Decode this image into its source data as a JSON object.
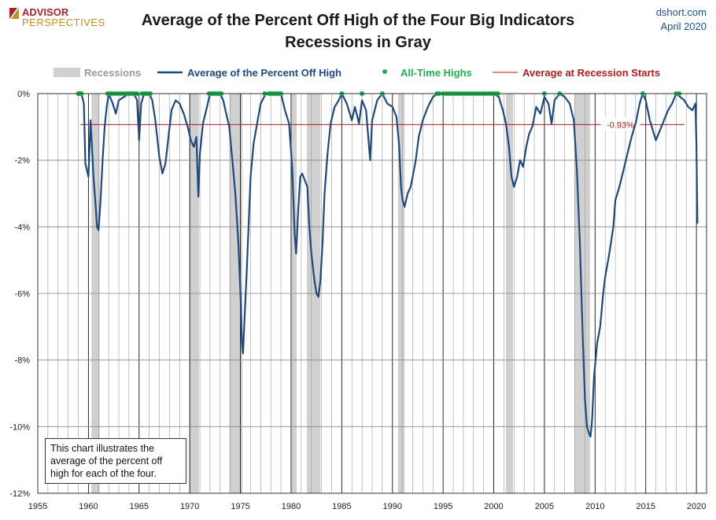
{
  "header": {
    "logo_line1": "ADVISOR",
    "logo_line2": "PERSPECTIVES",
    "title_line1": "Average of the Percent Off High of the Four Big Indicators",
    "title_line2": "Recessions in Gray",
    "source_site": "dshort.com",
    "source_date": "April 2020"
  },
  "legend": {
    "recessions": "Recessions",
    "average": "Average of the Percent Off High",
    "ath": "All-Time Highs",
    "avg_recession": "Average at Recession Starts"
  },
  "note": {
    "text": "This chart illustrates the average of the percent off high for each of the four."
  },
  "colors": {
    "line": "#1f497d",
    "ath": "#1fae4f",
    "recession_fill": "#d0d0d0",
    "avg_line": "#b01c1c",
    "grid": "#9a9a9a"
  },
  "chart_data": {
    "type": "line",
    "xlim": [
      1955,
      2021
    ],
    "ylim": [
      -12,
      0
    ],
    "x_ticks": [
      1955,
      1960,
      1965,
      1970,
      1975,
      1980,
      1985,
      1990,
      1995,
      2000,
      2005,
      2010,
      2015,
      2020
    ],
    "y_ticks": [
      0,
      -2,
      -4,
      -6,
      -8,
      -10,
      -12
    ],
    "y_tick_labels": [
      "0%",
      "-2%",
      "-4%",
      "-6%",
      "-8%",
      "-10%",
      "-12%"
    ],
    "recessions": [
      [
        1960.3,
        1961.1
      ],
      [
        1969.95,
        1970.9
      ],
      [
        1973.9,
        1975.2
      ],
      [
        1980.05,
        1980.55
      ],
      [
        1981.55,
        1982.9
      ],
      [
        1990.55,
        1991.2
      ],
      [
        2001.2,
        2001.9
      ],
      [
        2007.95,
        2009.5
      ]
    ],
    "average_at_recession_starts": -0.93,
    "average_label": "-0.93%",
    "series": [
      {
        "name": "Average of the Percent Off High",
        "points": [
          [
            1959.0,
            0.0
          ],
          [
            1959.3,
            0.0
          ],
          [
            1959.55,
            -0.3
          ],
          [
            1959.7,
            -2.1
          ],
          [
            1959.85,
            -2.3
          ],
          [
            1960.0,
            -2.5
          ],
          [
            1960.1,
            -1.7
          ],
          [
            1960.2,
            -0.8
          ],
          [
            1960.35,
            -1.6
          ],
          [
            1960.5,
            -2.5
          ],
          [
            1960.7,
            -3.3
          ],
          [
            1960.85,
            -4.0
          ],
          [
            1961.0,
            -4.1
          ],
          [
            1961.2,
            -3.2
          ],
          [
            1961.4,
            -2.0
          ],
          [
            1961.6,
            -1.0
          ],
          [
            1961.8,
            -0.4
          ],
          [
            1962.0,
            0.0
          ],
          [
            1962.4,
            -0.3
          ],
          [
            1962.7,
            -0.6
          ],
          [
            1963.0,
            -0.2
          ],
          [
            1963.5,
            -0.1
          ],
          [
            1964.0,
            0.0
          ],
          [
            1964.5,
            0.0
          ],
          [
            1964.8,
            -0.2
          ],
          [
            1965.0,
            -1.4
          ],
          [
            1965.2,
            -0.3
          ],
          [
            1965.5,
            0.0
          ],
          [
            1966.0,
            0.0
          ],
          [
            1966.3,
            -0.2
          ],
          [
            1966.6,
            -0.8
          ],
          [
            1967.0,
            -1.9
          ],
          [
            1967.3,
            -2.4
          ],
          [
            1967.6,
            -2.1
          ],
          [
            1967.9,
            -1.3
          ],
          [
            1968.2,
            -0.5
          ],
          [
            1968.6,
            -0.2
          ],
          [
            1969.0,
            -0.3
          ],
          [
            1969.4,
            -0.6
          ],
          [
            1969.8,
            -1.0
          ],
          [
            1970.1,
            -1.4
          ],
          [
            1970.4,
            -1.6
          ],
          [
            1970.65,
            -1.3
          ],
          [
            1970.85,
            -3.1
          ],
          [
            1971.0,
            -1.8
          ],
          [
            1971.3,
            -0.9
          ],
          [
            1971.7,
            -0.4
          ],
          [
            1972.0,
            0.0
          ],
          [
            1972.5,
            0.0
          ],
          [
            1973.0,
            0.0
          ],
          [
            1973.3,
            -0.2
          ],
          [
            1973.6,
            -0.6
          ],
          [
            1973.9,
            -1.0
          ],
          [
            1974.2,
            -2.0
          ],
          [
            1974.5,
            -3.0
          ],
          [
            1974.8,
            -4.5
          ],
          [
            1975.0,
            -6.0
          ],
          [
            1975.15,
            -7.5
          ],
          [
            1975.25,
            -7.8
          ],
          [
            1975.4,
            -6.8
          ],
          [
            1975.6,
            -5.5
          ],
          [
            1975.8,
            -4.0
          ],
          [
            1976.0,
            -2.5
          ],
          [
            1976.3,
            -1.5
          ],
          [
            1976.7,
            -0.8
          ],
          [
            1977.0,
            -0.3
          ],
          [
            1977.5,
            0.0
          ],
          [
            1978.0,
            0.0
          ],
          [
            1978.5,
            0.0
          ],
          [
            1979.0,
            0.0
          ],
          [
            1979.4,
            -0.5
          ],
          [
            1979.8,
            -0.9
          ],
          [
            1980.1,
            -2.2
          ],
          [
            1980.35,
            -4.2
          ],
          [
            1980.5,
            -4.8
          ],
          [
            1980.7,
            -3.5
          ],
          [
            1980.9,
            -2.5
          ],
          [
            1981.1,
            -2.4
          ],
          [
            1981.35,
            -2.6
          ],
          [
            1981.6,
            -2.8
          ],
          [
            1981.8,
            -4.0
          ],
          [
            1982.0,
            -4.8
          ],
          [
            1982.3,
            -5.6
          ],
          [
            1982.5,
            -6.0
          ],
          [
            1982.7,
            -6.1
          ],
          [
            1982.9,
            -5.6
          ],
          [
            1983.1,
            -4.5
          ],
          [
            1983.3,
            -3.0
          ],
          [
            1983.6,
            -1.8
          ],
          [
            1983.9,
            -0.9
          ],
          [
            1984.3,
            -0.4
          ],
          [
            1984.7,
            -0.2
          ],
          [
            1985.0,
            0.0
          ],
          [
            1985.5,
            -0.3
          ],
          [
            1986.0,
            -0.8
          ],
          [
            1986.3,
            -0.4
          ],
          [
            1986.7,
            -0.9
          ],
          [
            1987.0,
            -0.2
          ],
          [
            1987.4,
            -0.5
          ],
          [
            1987.8,
            -2.0
          ],
          [
            1988.0,
            -0.8
          ],
          [
            1988.5,
            -0.2
          ],
          [
            1989.0,
            0.0
          ],
          [
            1989.5,
            -0.3
          ],
          [
            1990.0,
            -0.4
          ],
          [
            1990.4,
            -0.7
          ],
          [
            1990.65,
            -1.5
          ],
          [
            1990.85,
            -2.8
          ],
          [
            1991.0,
            -3.2
          ],
          [
            1991.2,
            -3.4
          ],
          [
            1991.5,
            -3.0
          ],
          [
            1991.8,
            -2.8
          ],
          [
            1992.0,
            -2.5
          ],
          [
            1992.3,
            -2.0
          ],
          [
            1992.6,
            -1.3
          ],
          [
            1993.0,
            -0.8
          ],
          [
            1993.5,
            -0.4
          ],
          [
            1994.0,
            -0.1
          ],
          [
            1994.5,
            0.0
          ],
          [
            1995.0,
            0.0
          ],
          [
            1996.0,
            0.0
          ],
          [
            1997.0,
            0.0
          ],
          [
            1998.0,
            0.0
          ],
          [
            1999.0,
            0.0
          ],
          [
            2000.0,
            0.0
          ],
          [
            2000.5,
            -0.1
          ],
          [
            2000.9,
            -0.5
          ],
          [
            2001.2,
            -0.9
          ],
          [
            2001.5,
            -1.6
          ],
          [
            2001.75,
            -2.5
          ],
          [
            2002.0,
            -2.8
          ],
          [
            2002.3,
            -2.5
          ],
          [
            2002.6,
            -2.0
          ],
          [
            2002.9,
            -2.2
          ],
          [
            2003.2,
            -1.6
          ],
          [
            2003.5,
            -1.2
          ],
          [
            2003.8,
            -1.0
          ],
          [
            2004.2,
            -0.4
          ],
          [
            2004.6,
            -0.6
          ],
          [
            2005.0,
            -0.1
          ],
          [
            2005.4,
            -0.3
          ],
          [
            2005.7,
            -0.9
          ],
          [
            2006.0,
            -0.2
          ],
          [
            2006.5,
            0.0
          ],
          [
            2007.0,
            -0.1
          ],
          [
            2007.5,
            -0.3
          ],
          [
            2007.9,
            -0.8
          ],
          [
            2008.2,
            -2.3
          ],
          [
            2008.5,
            -4.5
          ],
          [
            2008.8,
            -7.5
          ],
          [
            2009.0,
            -9.2
          ],
          [
            2009.2,
            -10.0
          ],
          [
            2009.4,
            -10.2
          ],
          [
            2009.55,
            -10.3
          ],
          [
            2009.7,
            -9.8
          ],
          [
            2009.9,
            -8.5
          ],
          [
            2010.2,
            -7.5
          ],
          [
            2010.5,
            -7.0
          ],
          [
            2010.8,
            -6.0
          ],
          [
            2011.0,
            -5.5
          ],
          [
            2011.4,
            -4.8
          ],
          [
            2011.8,
            -4.0
          ],
          [
            2012.0,
            -3.2
          ],
          [
            2012.4,
            -2.8
          ],
          [
            2012.8,
            -2.3
          ],
          [
            2013.2,
            -1.8
          ],
          [
            2013.6,
            -1.3
          ],
          [
            2014.0,
            -0.9
          ],
          [
            2014.4,
            -0.3
          ],
          [
            2014.7,
            0.0
          ],
          [
            2015.0,
            -0.2
          ],
          [
            2015.4,
            -0.8
          ],
          [
            2015.8,
            -1.2
          ],
          [
            2016.0,
            -1.4
          ],
          [
            2016.4,
            -1.1
          ],
          [
            2016.8,
            -0.8
          ],
          [
            2017.2,
            -0.5
          ],
          [
            2017.6,
            -0.3
          ],
          [
            2018.0,
            0.0
          ],
          [
            2018.4,
            -0.1
          ],
          [
            2018.8,
            -0.2
          ],
          [
            2019.2,
            -0.4
          ],
          [
            2019.6,
            -0.5
          ],
          [
            2019.9,
            -0.3
          ],
          [
            2020.0,
            -1.5
          ],
          [
            2020.1,
            -3.9
          ]
        ]
      }
    ],
    "all_time_highs": [
      1959.0,
      1959.1,
      1959.2,
      1959.3,
      1961.9,
      1962.1,
      1962.3,
      1962.6,
      1962.9,
      1963.2,
      1963.5,
      1963.8,
      1964.0,
      1964.2,
      1964.4,
      1964.6,
      1964.8,
      1965.3,
      1965.5,
      1965.7,
      1965.9,
      1966.1,
      1971.9,
      1972.1,
      1972.3,
      1972.5,
      1972.7,
      1972.9,
      1973.1,
      1977.4,
      1977.8,
      1978.0,
      1978.2,
      1978.4,
      1978.6,
      1978.8,
      1979.0,
      1985.0,
      1987.0,
      1989.0,
      1994.4,
      1994.6,
      1995.0,
      1995.3,
      1995.6,
      1995.9,
      1996.2,
      1996.5,
      1996.8,
      1997.1,
      1997.4,
      1997.7,
      1998.0,
      1998.3,
      1998.6,
      1998.9,
      1999.2,
      1999.5,
      1999.8,
      2000.1,
      2000.4,
      2005.0,
      2006.5,
      2014.7,
      2018.0,
      2018.3
    ]
  }
}
